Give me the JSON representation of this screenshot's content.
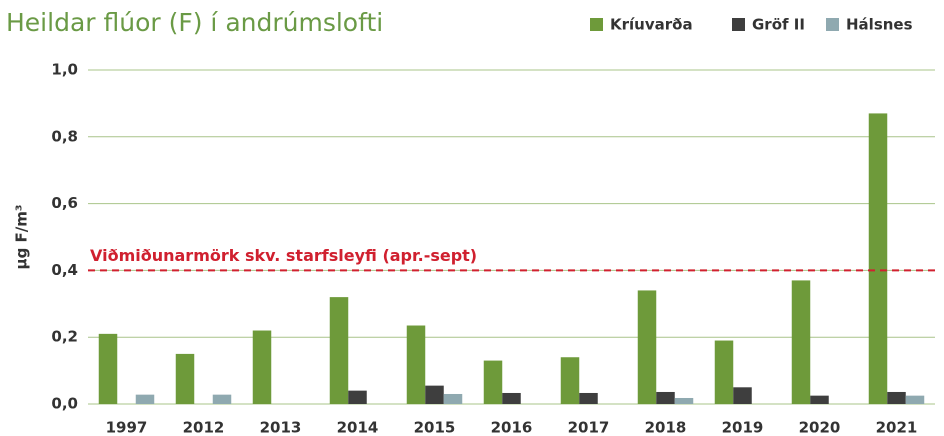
{
  "chart_data": {
    "type": "bar",
    "title": "Heildar flúor (F) í andrúmslofti",
    "y_label": "µg F/m³",
    "categories": [
      "1997",
      "2012",
      "2013",
      "2014",
      "2015",
      "2016",
      "2017",
      "2018",
      "2019",
      "2020",
      "2021"
    ],
    "series": [
      {
        "name": "Kríuvarða",
        "color": "#6e9a3a",
        "values": [
          0.21,
          0.15,
          0.22,
          0.32,
          0.235,
          0.13,
          0.14,
          0.34,
          0.19,
          0.37,
          0.87
        ]
      },
      {
        "name": "Gröf II",
        "color": "#3e3e3e",
        "values": [
          null,
          null,
          null,
          0.04,
          0.055,
          0.033,
          0.033,
          0.036,
          0.05,
          0.025,
          0.036
        ]
      },
      {
        "name": "Hálsnes",
        "color": "#8fa9b0",
        "values": [
          0.028,
          0.028,
          null,
          null,
          0.03,
          null,
          null,
          0.018,
          null,
          null,
          0.025
        ]
      }
    ],
    "ylim": [
      0,
      1
    ],
    "yticks": [
      {
        "value": 0,
        "label": "0,0"
      },
      {
        "value": 0.2,
        "label": "0,2"
      },
      {
        "value": 0.4,
        "label": "0,4"
      },
      {
        "value": 0.6,
        "label": "0,6"
      },
      {
        "value": 0.8,
        "label": "0,8"
      },
      {
        "value": 1,
        "label": "1,0"
      }
    ],
    "grid": true,
    "legend": "top-right",
    "reference": {
      "value": 0.4,
      "label": "Viðmiðunarmörk skv. starfsleyfi (apr.-sept)",
      "color": "#d0202f"
    }
  }
}
